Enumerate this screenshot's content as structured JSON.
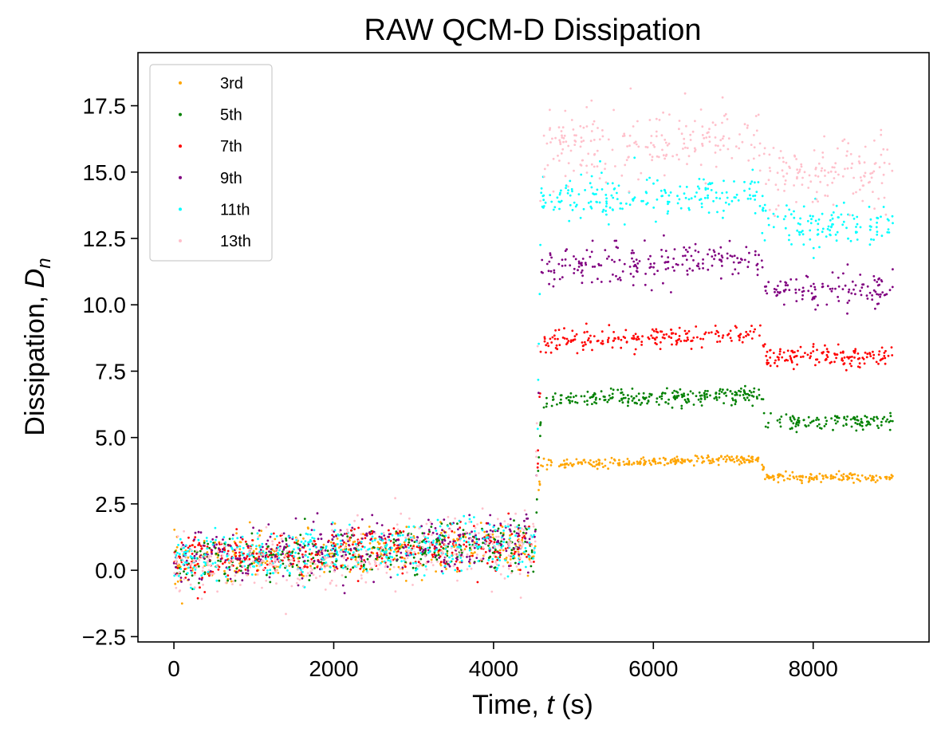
{
  "chart_data": {
    "type": "scatter",
    "title": "RAW QCM-D Dissipation",
    "xlabel_prefix": "Time, ",
    "xlabel_var": "t",
    "xlabel_suffix": " (s)",
    "ylabel_prefix": "Dissipation, ",
    "ylabel_var": "D",
    "ylabel_sub": "n",
    "xlim": [
      -450,
      9450
    ],
    "ylim": [
      -2.7,
      19.5
    ],
    "xticks": [
      0,
      2000,
      4000,
      6000,
      8000
    ],
    "xtick_labels": [
      "0",
      "2000",
      "4000",
      "6000",
      "8000"
    ],
    "yticks": [
      -2.5,
      0.0,
      2.5,
      5.0,
      7.5,
      10.0,
      12.5,
      15.0,
      17.5
    ],
    "ytick_labels": [
      "−2.5",
      "0.0",
      "2.5",
      "5.0",
      "7.5",
      "10.0",
      "12.5",
      "15.0",
      "17.5"
    ],
    "grid": false,
    "legend_position": "upper-left",
    "segments_t": [
      0,
      4520,
      4600,
      7350,
      7400,
      9000
    ],
    "series": [
      {
        "name": "3rd",
        "color": "#FFA500",
        "t": [
          0,
          4520,
          4600,
          7350,
          7400,
          9000
        ],
        "mean": [
          0.3,
          0.9,
          4.0,
          4.2,
          3.5,
          3.5
        ],
        "noise": [
          0.45,
          0.45,
          0.08,
          0.08,
          0.08,
          0.08
        ]
      },
      {
        "name": "5th",
        "color": "#008000",
        "t": [
          0,
          4520,
          4600,
          7350,
          7400,
          9000
        ],
        "mean": [
          0.3,
          0.9,
          6.4,
          6.6,
          5.6,
          5.6
        ],
        "noise": [
          0.45,
          0.45,
          0.15,
          0.15,
          0.15,
          0.15
        ]
      },
      {
        "name": "7th",
        "color": "#FF0000",
        "t": [
          0,
          4520,
          4600,
          7350,
          7400,
          9000
        ],
        "mean": [
          0.4,
          1.0,
          8.6,
          8.9,
          8.0,
          8.0
        ],
        "noise": [
          0.45,
          0.45,
          0.2,
          0.2,
          0.2,
          0.2
        ]
      },
      {
        "name": "9th",
        "color": "#800080",
        "t": [
          0,
          4520,
          4600,
          7350,
          7400,
          9000
        ],
        "mean": [
          0.5,
          1.2,
          11.4,
          11.8,
          10.6,
          10.6
        ],
        "noise": [
          0.5,
          0.5,
          0.35,
          0.35,
          0.35,
          0.35
        ]
      },
      {
        "name": "11th",
        "color": "#00FFFF",
        "t": [
          0,
          4520,
          4600,
          7350,
          7400,
          9000
        ],
        "mean": [
          0.4,
          1.0,
          13.9,
          14.2,
          13.0,
          13.0
        ],
        "noise": [
          0.5,
          0.5,
          0.4,
          0.4,
          0.4,
          0.4
        ]
      },
      {
        "name": "13th",
        "color": "#FFC0CB",
        "t": [
          0,
          4520,
          4600,
          7350,
          7400,
          9000
        ],
        "mean": [
          0.2,
          0.8,
          15.9,
          16.3,
          15.0,
          15.0
        ],
        "noise": [
          0.65,
          0.65,
          0.7,
          0.7,
          0.7,
          0.7
        ]
      }
    ]
  }
}
